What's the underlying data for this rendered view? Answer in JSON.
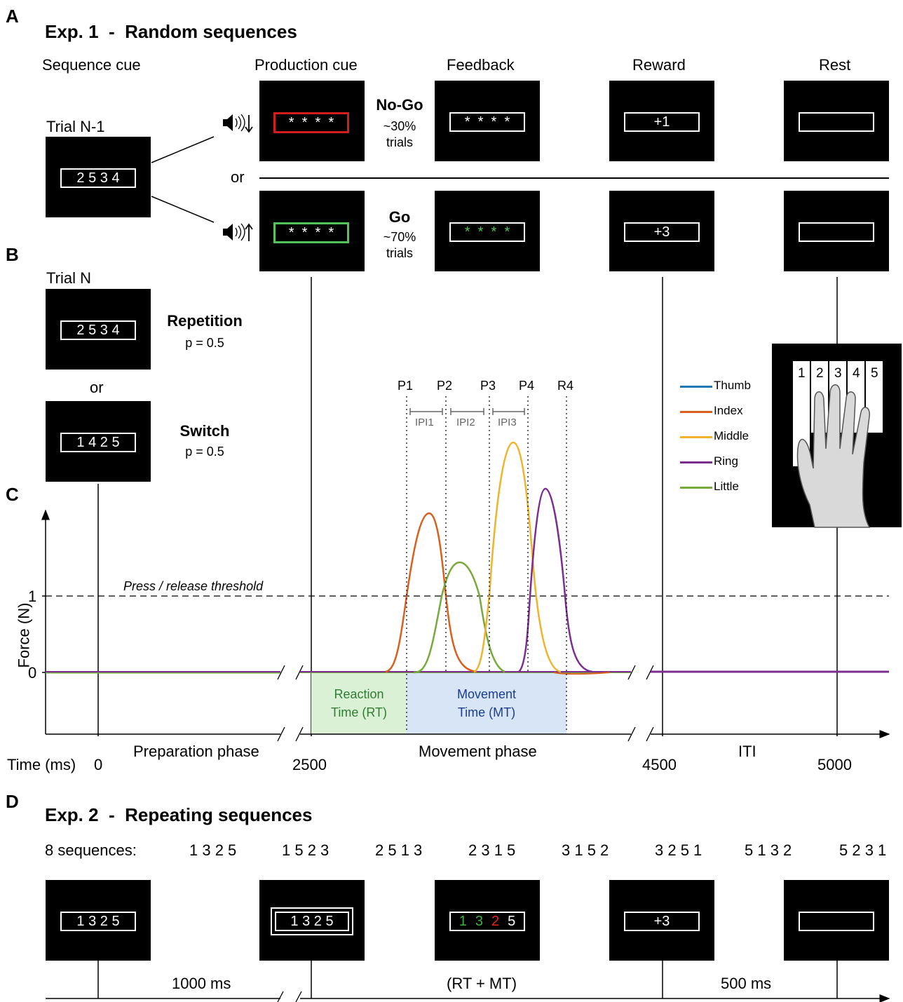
{
  "panels": {
    "A": "A",
    "B": "B",
    "C": "C",
    "D": "D"
  },
  "exp1": {
    "title": "Exp. 1  -  Random sequences",
    "headers": {
      "sequence_cue": "Sequence cue",
      "production_cue": "Production cue",
      "feedback": "Feedback",
      "reward": "Reward",
      "rest": "Rest"
    },
    "trial_prev": "Trial N-1",
    "seq_prev": "2 5 3 4",
    "or": "or",
    "nogo": {
      "label": "No-Go",
      "pct": "~30%",
      "trials": "trials",
      "stars": "*  *  *  *",
      "feedback_stars": "*  *  *  *",
      "reward": "+1",
      "color": "#d11d1d"
    },
    "go": {
      "label": "Go",
      "pct": "~70%",
      "trials": "trials",
      "stars": "*  *  *  *",
      "feedback_stars": "*  *  *  *",
      "reward": "+3",
      "color": "#53c45a"
    }
  },
  "panelB": {
    "trial": "Trial N",
    "repeat_seq": "2 5 3 4",
    "repeat_label": "Repetition",
    "repeat_p": "p = 0.5",
    "or": "or",
    "switch_seq": "1 4 2 5",
    "switch_label": "Switch",
    "switch_p": "p = 0.5"
  },
  "panelC": {
    "y_label": "Force (N)",
    "y_ticks": [
      "1",
      "0"
    ],
    "threshold_label": "Press / release threshold",
    "events": [
      "P1",
      "P2",
      "P3",
      "P4",
      "R4"
    ],
    "ipis": [
      "IPI1",
      "IPI2",
      "IPI3"
    ],
    "rt_label_1": "Reaction",
    "rt_label_2": "Time (RT)",
    "mt_label_1": "Movement",
    "mt_label_2": "Time (MT)",
    "time_label": "Time (ms)",
    "time_ticks": [
      "0",
      "2500",
      "4500",
      "5000"
    ],
    "phases": [
      "Preparation phase",
      "Movement phase",
      "ITI"
    ],
    "legend": [
      {
        "name": "Thumb",
        "color": "#1f77b4"
      },
      {
        "name": "Index",
        "color": "#d95f1c"
      },
      {
        "name": "Middle",
        "color": "#efb42c"
      },
      {
        "name": "Ring",
        "color": "#7b2d90"
      },
      {
        "name": "Little",
        "color": "#76ab3c"
      }
    ],
    "keys": [
      "1",
      "2",
      "3",
      "4",
      "5"
    ],
    "rt_fill": "#dbf1d6",
    "mt_fill": "#d7e5f7",
    "rt_text_color": "#2e7d32",
    "mt_text_color": "#1a3d8f"
  },
  "exp2": {
    "title": "Exp. 2  -  Repeating sequences",
    "seq_label": "8 sequences:",
    "sequences": [
      "1 3 2 5",
      "1 5 2 3",
      "2 5 1 3",
      "2 3 1 5",
      "3 1 5 2",
      "3 2 5 1",
      "5 1 3 2",
      "5 2 3 1"
    ],
    "cue_seq": "1 3 2 5",
    "prod_seq": "1 3 2 5",
    "fb_digits": [
      {
        "d": "1",
        "c": "#3fae49"
      },
      {
        "d": "3",
        "c": "#3fae49"
      },
      {
        "d": "2",
        "c": "#e8231f"
      },
      {
        "d": "5",
        "c": "#ffffff"
      }
    ],
    "reward": "+3",
    "durations": [
      "1000 ms",
      "(RT + MT)",
      "500 ms"
    ]
  }
}
